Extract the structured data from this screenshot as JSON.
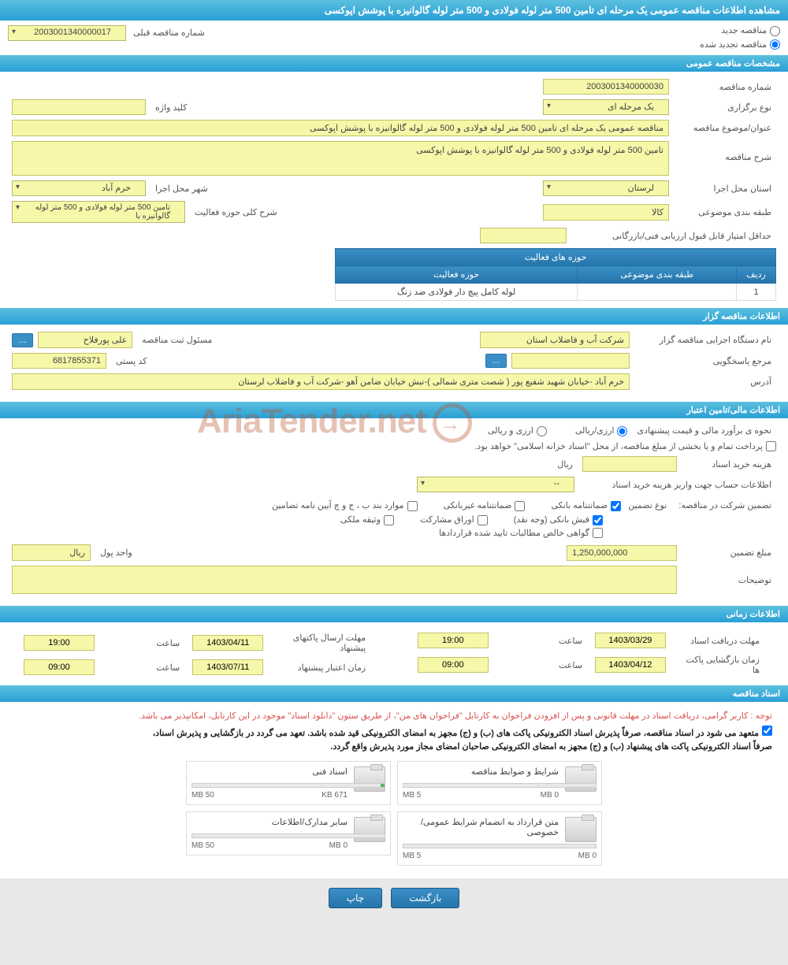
{
  "page_title": "مشاهده اطلاعات مناقصه عمومی یک مرحله ای تامین 500 متر لوله فولادی و 500 متر لوله گالوانیزه با پوشش اپوکسی",
  "radio": {
    "new_label": "مناقصه جدید",
    "renewed_label": "مناقصه تجدید شده",
    "prev_no_label": "شماره مناقصه قبلی",
    "prev_no": "2003001340000017"
  },
  "sections": {
    "general": "مشخصات مناقصه عمومی",
    "org": "اطلاعات مناقصه گزار",
    "financial": "اطلاعات مالی/تامین اعتبار",
    "timing": "اطلاعات زمانی",
    "docs": "اسناد مناقصه"
  },
  "general": {
    "tender_no_lbl": "شماره مناقصه",
    "tender_no": "2003001340000030",
    "type_lbl": "نوع برگزاری",
    "type": "یک مرحله ای",
    "keyword_lbl": "کلید واژه",
    "keyword": "",
    "title_lbl": "عنوان/موضوع مناقصه",
    "title": "مناقصه عمومی یک مرحله ای تامین 500 متر لوله فولادی و 500 متر لوله گالوانیزه با پوشش اپوکسی",
    "desc_lbl": "شرح مناقصه",
    "desc": "تامین 500 متر لوله فولادی و 500 متر لوله گالوانیزه با پوشش اپوکسی",
    "province_lbl": "استان محل اجرا",
    "province": "لرستان",
    "city_lbl": "شهر محل اجرا",
    "city": "خرم آباد",
    "category_lbl": "طبقه بندی موضوعی",
    "category": "کالا",
    "activity_desc_lbl": "شرح کلی حوزه فعالیت",
    "activity_desc": "تامین 500 متر لوله فولادی و 500 متر لوله گالوانیزه با",
    "min_score_lbl": "حداقل امتیاز قابل قبول ارزیابی فنی/بازرگانی",
    "min_score": "",
    "activities_header": "حوزه های فعالیت",
    "table_headers": {
      "row": "ردیف",
      "category": "طبقه بندی موضوعی",
      "activity": "حوزه فعالیت"
    },
    "activities": [
      {
        "row": "1",
        "category": "",
        "activity": "لوله کامل پیچ دار فولادی ضد زنگ"
      }
    ]
  },
  "org": {
    "name_lbl": "نام دستگاه اجرایی مناقصه گزار",
    "name": "شرکت آب و فاضلاب استان",
    "rep_lbl": "مسئول ثبت مناقصه",
    "rep": "علی پورفلاح",
    "dots": "...",
    "contact_lbl": "مرجع پاسخگویی",
    "contact": "",
    "postal_lbl": "کد پستی",
    "postal": "6817855371",
    "address_lbl": "آدرس",
    "address": "خرم آباد -خیابان شهید شفیع پور ( شصت متری شمالی )-نبش خیابان ضامن آهو -شرکت آب و فاضلاب لرستان"
  },
  "fin": {
    "method_lbl": "نحوه ی برآورد مالی و قیمت پیشنهادی",
    "method_opt1": "ارزی/ریالی",
    "method_opt2": "ارزی و ریالی",
    "treasury": "پرداخت تمام و یا بخشی از مبلغ مناقصه، از محل \"اسناد خزانه اسلامی\" خواهد بود.",
    "doc_fee_lbl": "هزینه خرید اسناد",
    "doc_fee": "",
    "currency": "ریال",
    "account_lbl": "اطلاعات حساب جهت واریز هزینه خرید اسناد",
    "account": "--",
    "guarantee_label": "تضمین شرکت در مناقصه:",
    "guarantee_type_lbl": "نوع تضمین",
    "chk1": "ضمانتنامه بانکی",
    "chk2": "ضمانتنامه غیربانکی",
    "chk3": "موارد بند ب ، ج و چ آیین نامه تضامین",
    "chk4": "فیش بانکی (وجه نقد)",
    "chk5": "اوراق مشارکت",
    "chk6": "وثیقه ملکی",
    "chk7": "گواهی خالص مطالبات تایید شده قراردادها",
    "amount_lbl": "مبلغ تضمین",
    "amount": "1,250,000,000",
    "unit_lbl": "واحد پول",
    "unit": "ریال",
    "notes_lbl": "توضیحات",
    "notes": ""
  },
  "timing": {
    "doc_deadline_lbl": "مهلت دریافت اسناد",
    "doc_deadline_date": "1403/03/29",
    "doc_deadline_time": "19:00",
    "time_lbl": "ساعت",
    "bid_deadline_lbl": "مهلت ارسال پاکتهای پیشنهاد",
    "bid_deadline_date": "1403/04/11",
    "bid_deadline_time": "19:00",
    "open_lbl": "زمان بازگشایی پاکت ها",
    "open_date": "1403/04/12",
    "open_time": "09:00",
    "validity_lbl": "زمان اعتبار پیشنهاد",
    "validity_date": "1403/07/11",
    "validity_time": "09:00"
  },
  "docs": {
    "warning": "توجه : کاربر گرامی، دریافت اسناد در مهلت قانونی و پس از افزودن فراخوان به کارتابل \"فراخوان های من\"، از طریق ستون \"دانلود اسناد\" موجود در این کارتابل، امکانپذیر می باشد.",
    "note1": "متعهد می شود در اسناد مناقصه، صرفاً پذیرش اسناد الکترونیکی پاکت های (ب) و (ج) مجهز به امضای الکترونیکی قید شده باشد. تعهد می گردد در بازگشایی و پذیرش اسناد،",
    "note2": "صرفاً اسناد الکترونیکی پاکت های پیشنهاد (ب) و (ج) مجهز به امضای الکترونیکی صاحبان امضای مجاز مورد پذیرش واقع گردد.",
    "files": [
      {
        "name": "شرایط و ضوابط مناقصه",
        "used": "0 MB",
        "max": "5 MB",
        "fill": 0
      },
      {
        "name": "اسناد فنی",
        "used": "671 KB",
        "max": "50 MB",
        "fill": 2
      },
      {
        "name": "متن قرارداد به انضمام شرایط عمومی/خصوصی",
        "used": "0 MB",
        "max": "5 MB",
        "fill": 0
      },
      {
        "name": "سایر مدارک/اطلاعات",
        "used": "0 MB",
        "max": "50 MB",
        "fill": 0
      }
    ]
  },
  "buttons": {
    "back": "بازگشت",
    "print": "چاپ"
  },
  "watermark": "AriaTender.net"
}
